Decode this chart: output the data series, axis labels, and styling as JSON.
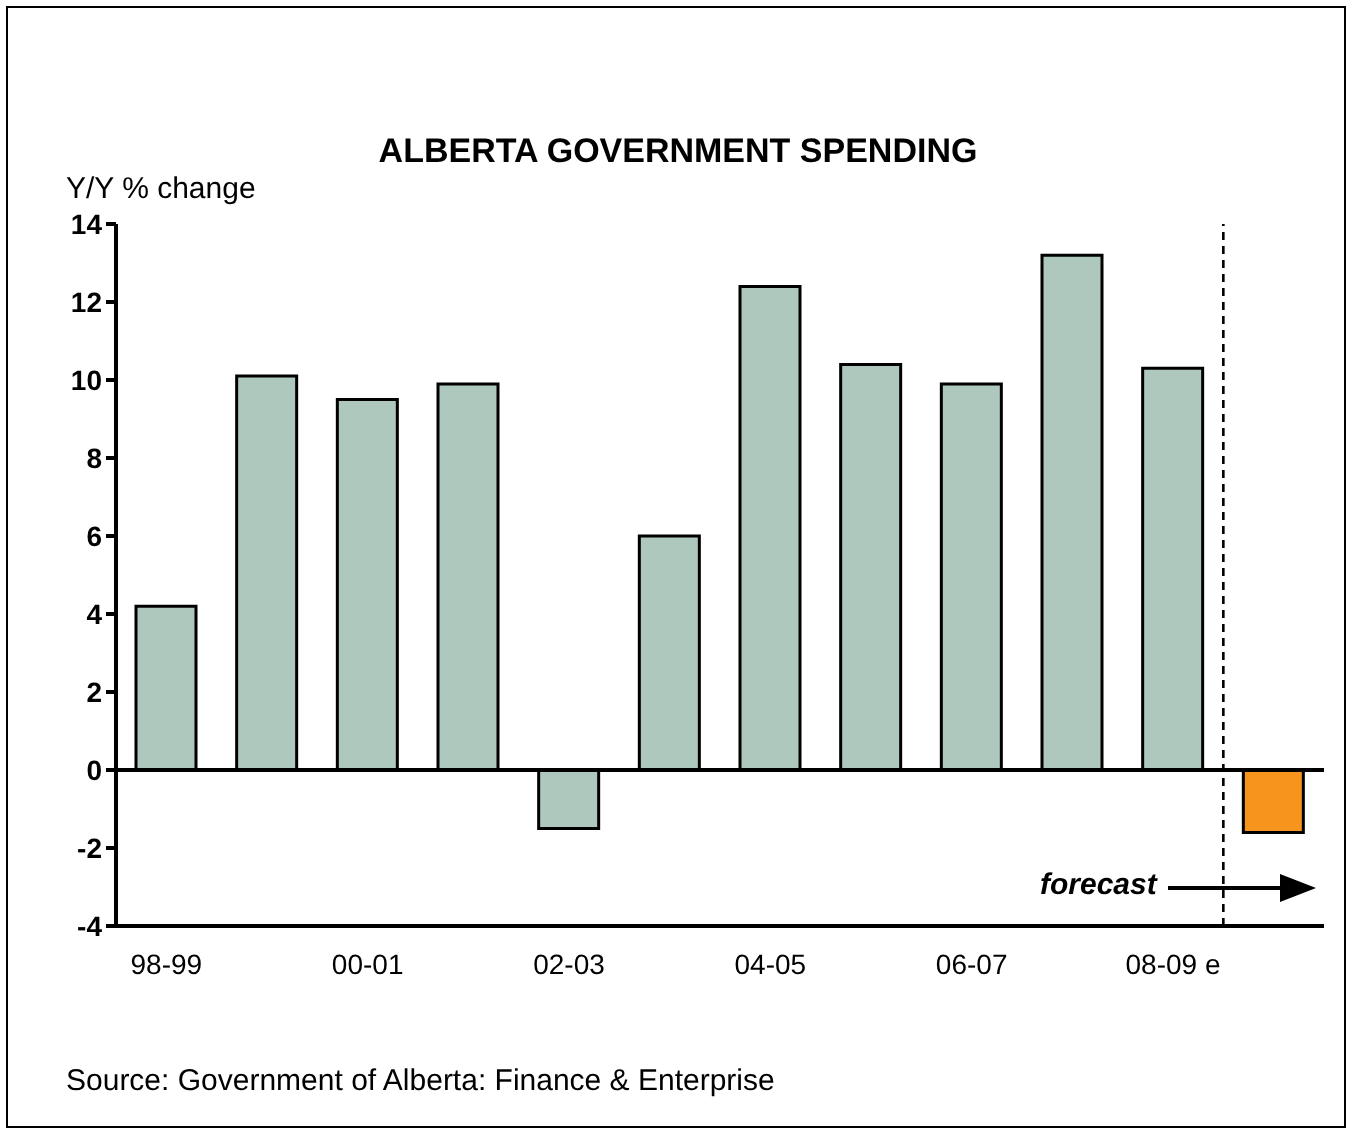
{
  "chart_data": {
    "type": "bar",
    "title": "ALBERTA GOVERNMENT SPENDING",
    "ylabel": "Y/Y % change",
    "categories": [
      "98-99",
      null,
      "00-01",
      null,
      "02-03",
      null,
      "04-05",
      null,
      "06-07",
      null,
      "08-09 e",
      null
    ],
    "values": [
      4.2,
      10.1,
      9.5,
      9.9,
      -1.5,
      6.0,
      12.4,
      10.4,
      9.9,
      13.2,
      10.3,
      -1.6
    ],
    "colors": [
      "#afc8bd",
      "#afc8bd",
      "#afc8bd",
      "#afc8bd",
      "#afc8bd",
      "#afc8bd",
      "#afc8bd",
      "#afc8bd",
      "#afc8bd",
      "#afc8bd",
      "#afc8bd",
      "#f7941d"
    ],
    "ylim": [
      -4,
      14
    ],
    "yticks": [
      -4,
      -2,
      0,
      2,
      4,
      6,
      8,
      10,
      12,
      14
    ],
    "annotations": [
      "forecast",
      "Source: Government of Alberta: Finance & Enterprise"
    ]
  }
}
